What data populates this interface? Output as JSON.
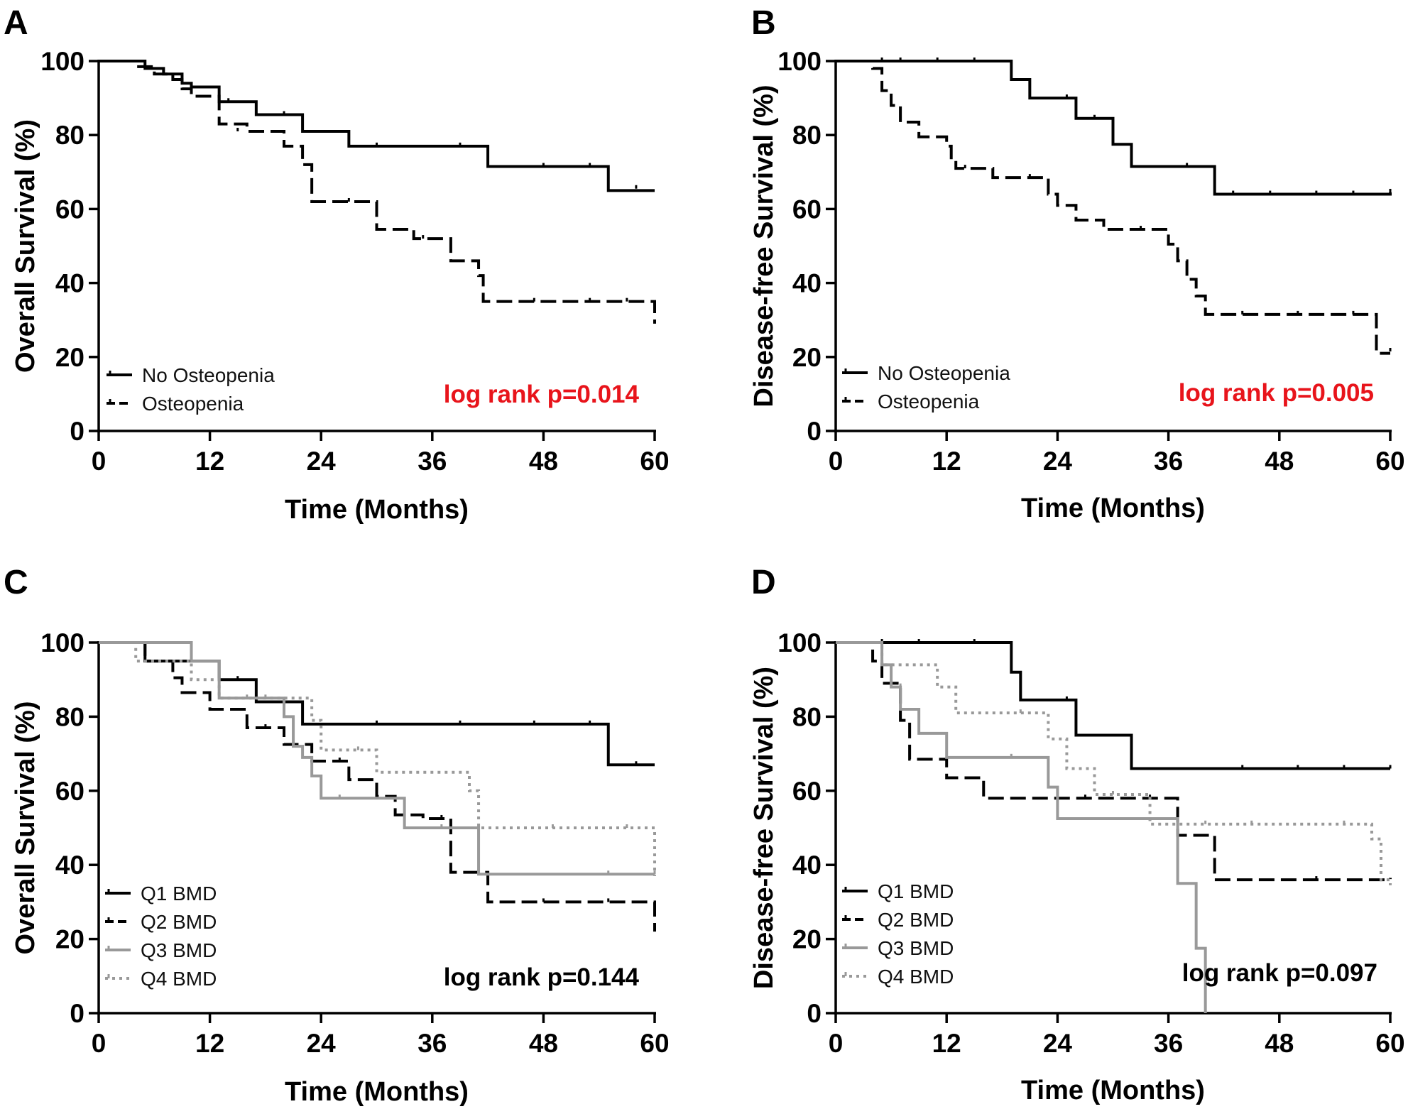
{
  "chart_data": [
    {
      "panel": "A",
      "type": "line",
      "subtype": "kaplan-meier",
      "xlabel": "Time (Months)",
      "ylabel": "Overall Survival (%)",
      "xlim": [
        0,
        60
      ],
      "ylim": [
        0,
        100
      ],
      "xticks": [
        "0",
        "12",
        "24",
        "36",
        "48",
        "60"
      ],
      "yticks": [
        "0",
        "20",
        "40",
        "60",
        "80",
        "100"
      ],
      "legend_position": "bottom-left",
      "annotation": "log rank p=0.014",
      "annotation_color": "#e8141b",
      "series": [
        {
          "name": "No Osteopenia",
          "color": "#000000",
          "dash": "solid",
          "steps": [
            [
              0,
              100
            ],
            [
              5,
              98
            ],
            [
              7,
              96.5
            ],
            [
              9,
              94
            ],
            [
              10,
              93
            ],
            [
              13,
              89
            ],
            [
              17,
              85.5
            ],
            [
              22,
              81
            ],
            [
              27,
              77
            ],
            [
              42,
              71.5
            ],
            [
              55,
              65
            ],
            [
              60,
              65
            ]
          ],
          "censors": [
            [
              14,
              89
            ],
            [
              20,
              85.5
            ],
            [
              30,
              77
            ],
            [
              39,
              77
            ],
            [
              48,
              71.5
            ],
            [
              53,
              71.5
            ],
            [
              58,
              65.5
            ]
          ]
        },
        {
          "name": "Osteopenia",
          "color": "#000000",
          "dash": "dashed",
          "steps": [
            [
              0,
              100
            ],
            [
              4,
              98.5
            ],
            [
              6,
              96.5
            ],
            [
              8,
              95
            ],
            [
              9,
              92.5
            ],
            [
              10,
              90.5
            ],
            [
              13,
              83
            ],
            [
              16,
              81
            ],
            [
              20,
              77
            ],
            [
              22,
              72
            ],
            [
              23,
              62
            ],
            [
              30,
              54.5
            ],
            [
              34,
              52
            ],
            [
              38,
              46
            ],
            [
              41,
              42
            ],
            [
              41.5,
              35
            ],
            [
              60,
              35
            ],
            [
              60,
              29
            ]
          ],
          "censors": [
            [
              15,
              81
            ],
            [
              27,
              62
            ],
            [
              35,
              52
            ],
            [
              47,
              35
            ],
            [
              53,
              35
            ],
            [
              57,
              35
            ]
          ]
        }
      ]
    },
    {
      "panel": "B",
      "type": "line",
      "subtype": "kaplan-meier",
      "xlabel": "Time (Months)",
      "ylabel": "Disease-free Survival (%)",
      "xlim": [
        0,
        60
      ],
      "ylim": [
        0,
        100
      ],
      "xticks": [
        "0",
        "12",
        "24",
        "36",
        "48",
        "60"
      ],
      "yticks": [
        "0",
        "20",
        "40",
        "60",
        "80",
        "100"
      ],
      "legend_position": "bottom-left",
      "annotation": "log rank p=0.005",
      "annotation_color": "#e8141b",
      "series": [
        {
          "name": "No Osteopenia",
          "color": "#000000",
          "dash": "solid",
          "steps": [
            [
              0,
              100
            ],
            [
              19,
              95
            ],
            [
              21,
              90
            ],
            [
              26,
              84.5
            ],
            [
              30,
              77.5
            ],
            [
              32,
              71.5
            ],
            [
              41,
              64
            ],
            [
              60,
              64.5
            ]
          ],
          "censors": [
            [
              5,
              100
            ],
            [
              7,
              100
            ],
            [
              11,
              100
            ],
            [
              15,
              100
            ],
            [
              25,
              90
            ],
            [
              28,
              84.5
            ],
            [
              38,
              71.5
            ],
            [
              43,
              64
            ],
            [
              47,
              64
            ],
            [
              52,
              64
            ],
            [
              56,
              64
            ],
            [
              60,
              64.5
            ]
          ]
        },
        {
          "name": "Osteopenia",
          "color": "#000000",
          "dash": "dashed",
          "steps": [
            [
              0,
              100
            ],
            [
              4,
              98
            ],
            [
              5,
              92
            ],
            [
              6,
              88
            ],
            [
              7,
              83.5
            ],
            [
              9,
              79.5
            ],
            [
              12,
              77
            ],
            [
              12.5,
              73
            ],
            [
              13,
              71
            ],
            [
              17,
              68.5
            ],
            [
              23,
              64
            ],
            [
              24,
              61
            ],
            [
              26,
              57
            ],
            [
              29,
              54.5
            ],
            [
              36,
              50.5
            ],
            [
              37,
              46
            ],
            [
              38,
              41
            ],
            [
              39,
              36.5
            ],
            [
              40,
              31.5
            ],
            [
              58,
              31.5
            ],
            [
              58.5,
              21
            ],
            [
              60,
              21
            ]
          ],
          "censors": [
            [
              14,
              71
            ],
            [
              21,
              68.5
            ],
            [
              33,
              54.5
            ],
            [
              44,
              31.5
            ],
            [
              50,
              31.5
            ],
            [
              56,
              31.5
            ],
            [
              60,
              21.5
            ]
          ]
        }
      ]
    },
    {
      "panel": "C",
      "type": "line",
      "subtype": "kaplan-meier",
      "xlabel": "Time (Months)",
      "ylabel": "Overall Survival (%)",
      "xlim": [
        0,
        60
      ],
      "ylim": [
        0,
        100
      ],
      "xticks": [
        "0",
        "12",
        "24",
        "36",
        "48",
        "60"
      ],
      "yticks": [
        "0",
        "20",
        "40",
        "60",
        "80",
        "100"
      ],
      "legend_position": "bottom-left",
      "annotation": "log rank p=0.144",
      "annotation_color": "#000000",
      "series": [
        {
          "name": "Q1 BMD",
          "color": "#000000",
          "dash": "solid",
          "steps": [
            [
              0,
              100
            ],
            [
              5,
              95
            ],
            [
              13,
              90
            ],
            [
              17,
              84
            ],
            [
              22,
              78
            ],
            [
              55,
              67
            ],
            [
              60,
              67
            ]
          ],
          "censors": [
            [
              15,
              90
            ],
            [
              30,
              78
            ],
            [
              39,
              78
            ],
            [
              47,
              78
            ],
            [
              53,
              78
            ],
            [
              58,
              67
            ]
          ]
        },
        {
          "name": "Q2 BMD",
          "color": "#000000",
          "dash": "dashed",
          "steps": [
            [
              0,
              100
            ],
            [
              5,
              95
            ],
            [
              8,
              90.5
            ],
            [
              9,
              86.5
            ],
            [
              12,
              82
            ],
            [
              16,
              77
            ],
            [
              20,
              72.5
            ],
            [
              23,
              68
            ],
            [
              27,
              63
            ],
            [
              30,
              58.5
            ],
            [
              32,
              53.5
            ],
            [
              35,
              52.5
            ],
            [
              38,
              38
            ],
            [
              42,
              30
            ],
            [
              60,
              30
            ],
            [
              60,
              22
            ]
          ],
          "censors": [
            [
              18,
              77
            ],
            [
              26,
              68
            ],
            [
              37,
              52.5
            ],
            [
              48,
              30
            ],
            [
              55,
              30
            ]
          ]
        },
        {
          "name": "Q3 BMD",
          "color": "#999999",
          "dash": "solid",
          "steps": [
            [
              0,
              100
            ],
            [
              10,
              95
            ],
            [
              13,
              85
            ],
            [
              20,
              80
            ],
            [
              21,
              72
            ],
            [
              22,
              69
            ],
            [
              23,
              64
            ],
            [
              24,
              58
            ],
            [
              33,
              50
            ],
            [
              41,
              37.5
            ],
            [
              60,
              37.5
            ]
          ],
          "censors": [
            [
              16,
              85
            ],
            [
              26,
              58
            ],
            [
              37,
              50
            ],
            [
              55,
              37.5
            ],
            [
              60,
              37.5
            ]
          ]
        },
        {
          "name": "Q4 BMD",
          "color": "#999999",
          "dash": "dotted",
          "steps": [
            [
              0,
              100
            ],
            [
              4,
              95
            ],
            [
              10,
              90
            ],
            [
              13,
              85
            ],
            [
              23,
              79
            ],
            [
              24,
              71
            ],
            [
              30,
              65
            ],
            [
              40,
              60
            ],
            [
              41,
              50
            ],
            [
              60,
              50
            ],
            [
              60,
              37
            ]
          ],
          "censors": [
            [
              18,
              85
            ],
            [
              28,
              71
            ],
            [
              49,
              50
            ],
            [
              57,
              50
            ]
          ]
        }
      ]
    },
    {
      "panel": "D",
      "type": "line",
      "subtype": "kaplan-meier",
      "xlabel": "Time (Months)",
      "ylabel": "Disease-free Survival (%)",
      "xlim": [
        0,
        60
      ],
      "ylim": [
        0,
        100
      ],
      "xticks": [
        "0",
        "12",
        "24",
        "36",
        "48",
        "60"
      ],
      "yticks": [
        "0",
        "20",
        "40",
        "60",
        "80",
        "100"
      ],
      "legend_position": "bottom-left",
      "annotation": "log rank p=0.097",
      "annotation_color": "#000000",
      "series": [
        {
          "name": "Q1 BMD",
          "color": "#000000",
          "dash": "solid",
          "steps": [
            [
              0,
              100
            ],
            [
              19,
              92
            ],
            [
              20,
              84.5
            ],
            [
              26,
              75
            ],
            [
              32,
              66
            ],
            [
              60,
              66
            ]
          ],
          "censors": [
            [
              5,
              100
            ],
            [
              9,
              100
            ],
            [
              15,
              100
            ],
            [
              25,
              84.5
            ],
            [
              44,
              66
            ],
            [
              50,
              66
            ],
            [
              55,
              66
            ],
            [
              60,
              66
            ]
          ]
        },
        {
          "name": "Q2 BMD",
          "color": "#000000",
          "dash": "dashed",
          "steps": [
            [
              0,
              100
            ],
            [
              4,
              95
            ],
            [
              5,
              89
            ],
            [
              7,
              79
            ],
            [
              8,
              68.5
            ],
            [
              12,
              63.5
            ],
            [
              16,
              58
            ],
            [
              37,
              48
            ],
            [
              41,
              36
            ],
            [
              60,
              36.5
            ]
          ],
          "censors": [
            [
              27,
              58
            ],
            [
              34,
              58
            ],
            [
              52,
              36
            ]
          ]
        },
        {
          "name": "Q3 BMD",
          "color": "#999999",
          "dash": "solid",
          "steps": [
            [
              0,
              100
            ],
            [
              5,
              94
            ],
            [
              6,
              88
            ],
            [
              7,
              82
            ],
            [
              9,
              75.5
            ],
            [
              12,
              69
            ],
            [
              23,
              61
            ],
            [
              24,
              52.5
            ],
            [
              37,
              35
            ],
            [
              39,
              17.5
            ],
            [
              40,
              0
            ]
          ],
          "censors": [
            [
              7,
              88
            ],
            [
              19,
              69
            ]
          ]
        },
        {
          "name": "Q4 BMD",
          "color": "#999999",
          "dash": "dotted",
          "steps": [
            [
              0,
              100
            ],
            [
              5,
              94
            ],
            [
              11,
              88
            ],
            [
              13,
              81
            ],
            [
              23,
              74
            ],
            [
              25,
              66
            ],
            [
              28,
              59
            ],
            [
              34,
              51
            ],
            [
              58,
              47
            ],
            [
              59,
              36
            ],
            [
              60,
              34.5
            ]
          ],
          "censors": [
            [
              20,
              81
            ],
            [
              30,
              59
            ],
            [
              40,
              51
            ],
            [
              45,
              51
            ],
            [
              55,
              51
            ]
          ]
        }
      ]
    }
  ]
}
